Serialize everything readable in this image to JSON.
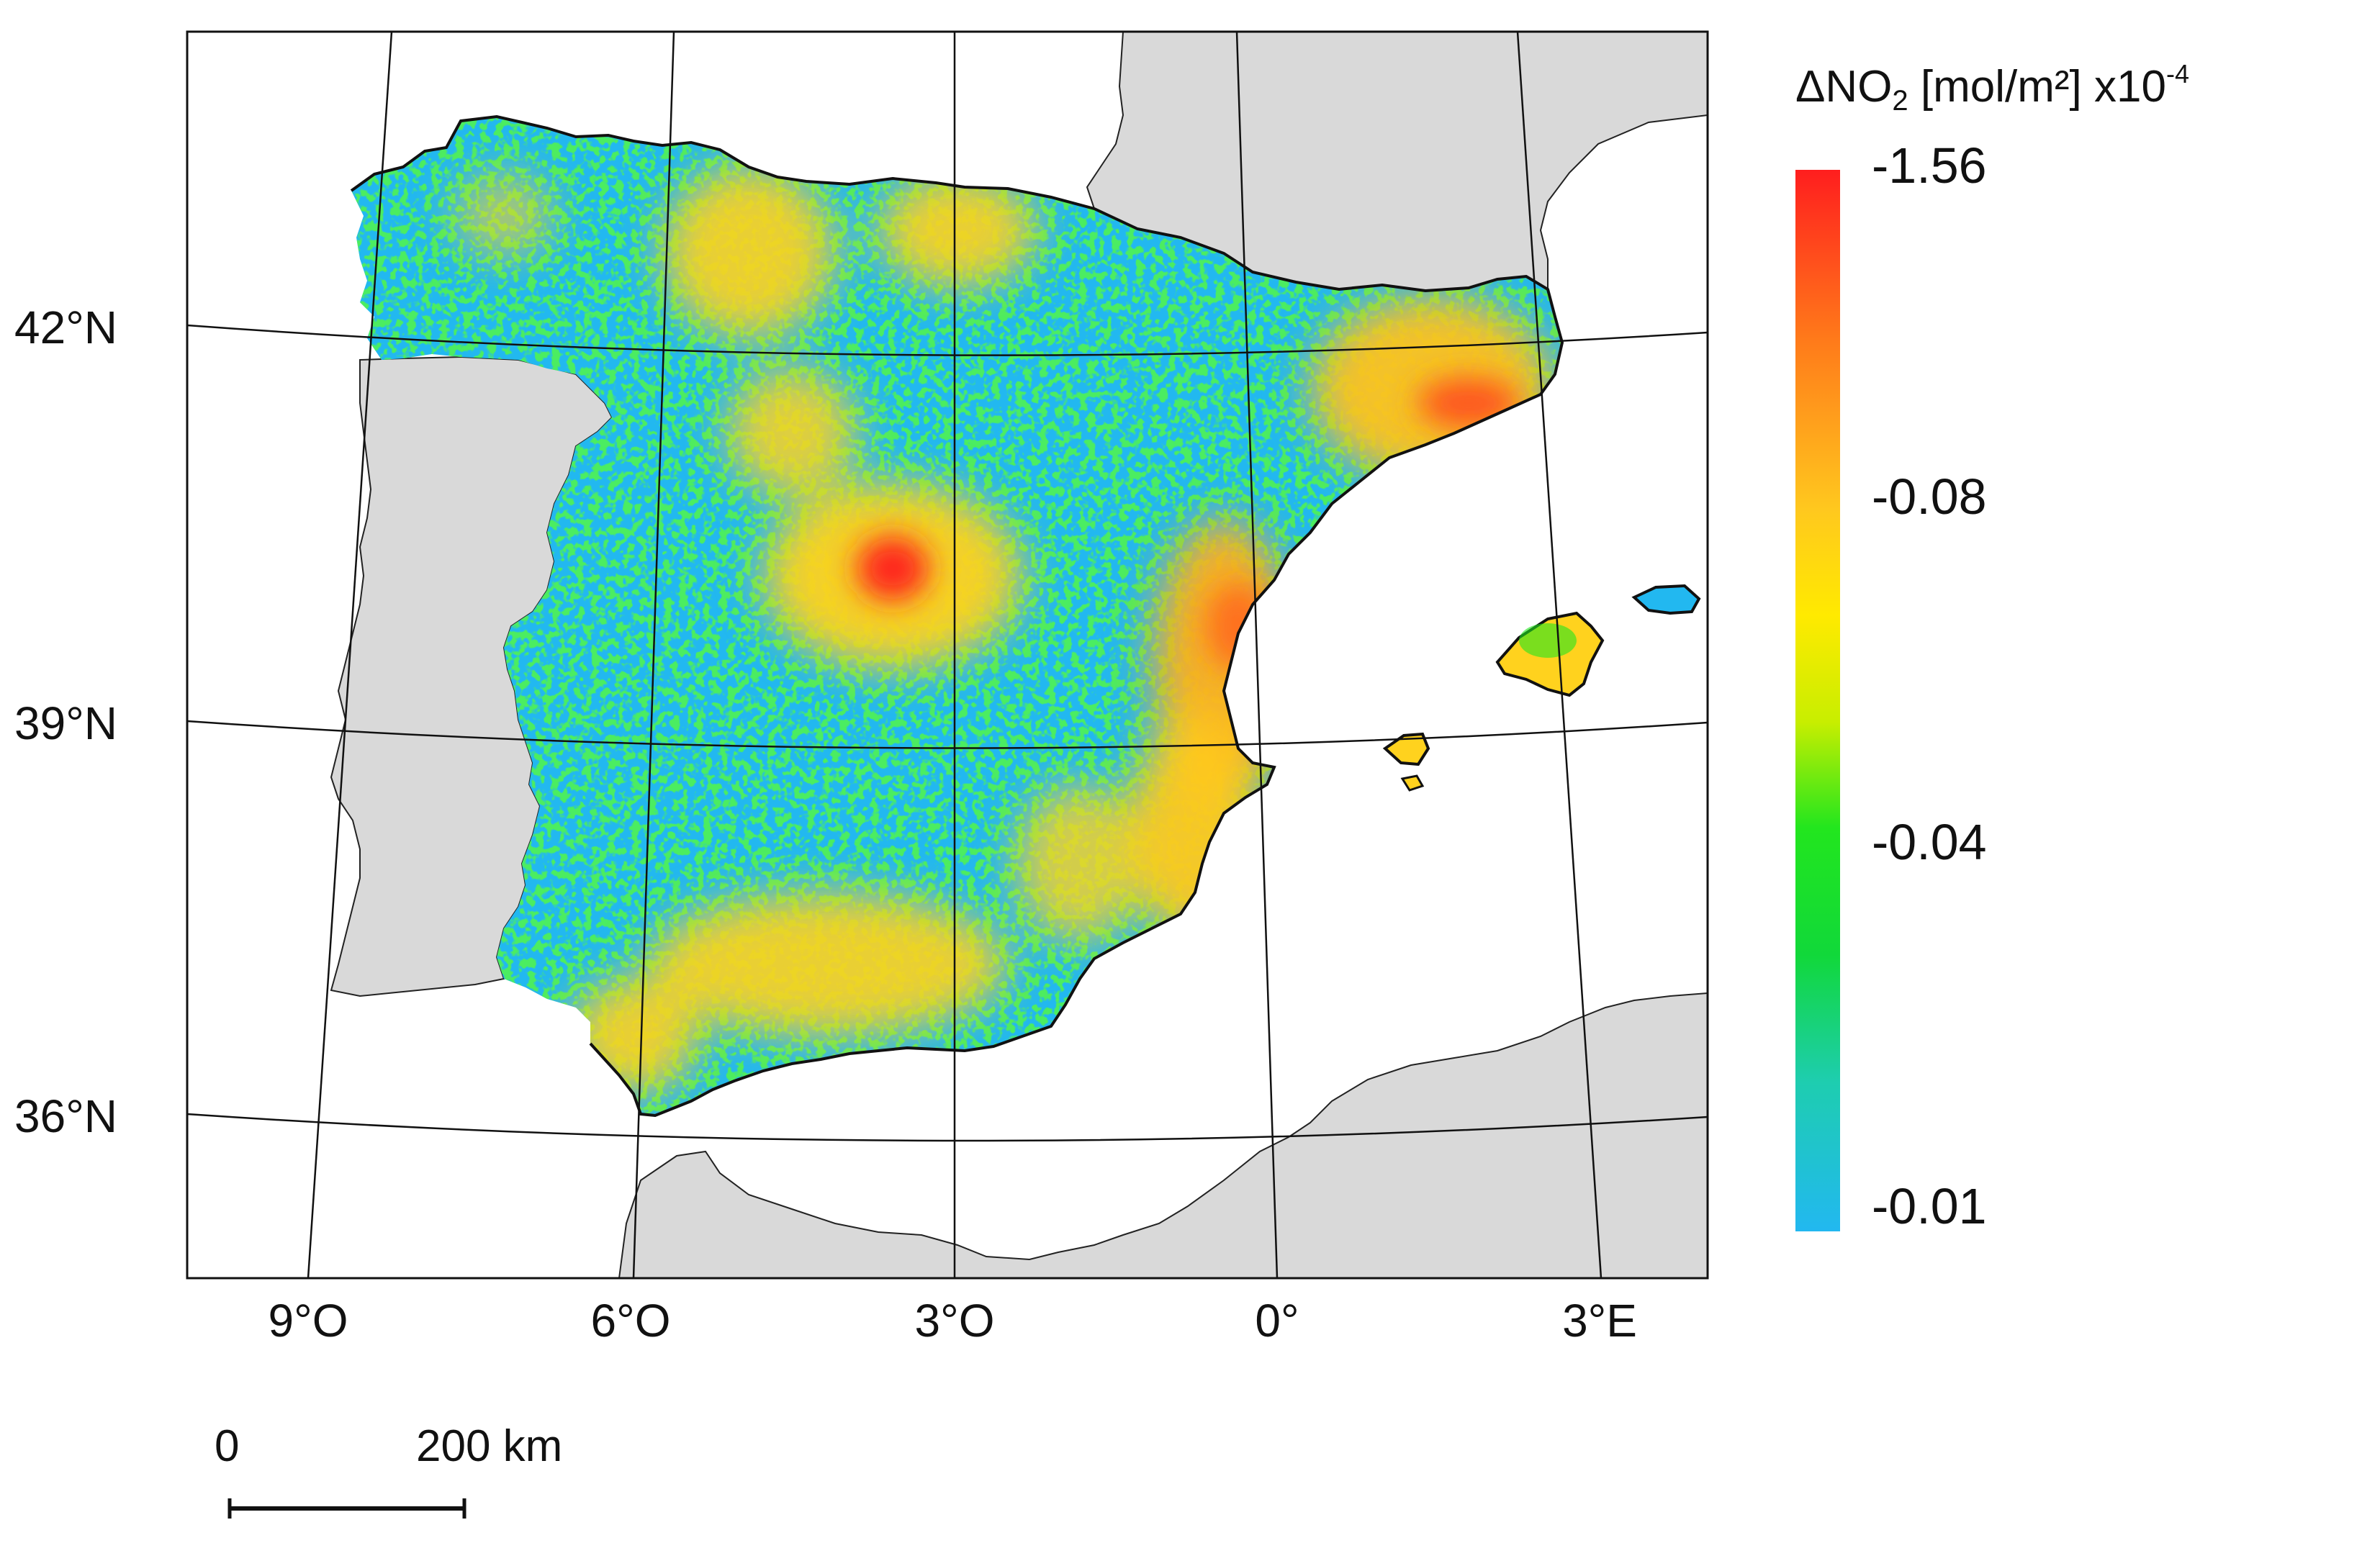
{
  "legend": {
    "title_delta": "ΔNO",
    "title_sub": "2",
    "title_unit": "[mol/m²] x10",
    "title_exp": "-4",
    "ticks": [
      "-1.56",
      "-0.08",
      "-0.04",
      "-0.01"
    ],
    "colors": [
      "#ff1e1e",
      "#ff9a1a",
      "#ffea00",
      "#22e61e",
      "#22b8f0"
    ]
  },
  "latitude_labels": [
    "42°N",
    "39°N",
    "36°N"
  ],
  "longitude_labels": [
    "9°O",
    "6°O",
    "3°O",
    "0°",
    "3°E"
  ],
  "scale_bar": {
    "start": "0",
    "end": "200 km"
  },
  "colors": {
    "land_gray": "#d9d9d9",
    "high_value": "#ff1e1e",
    "mid_value": "#ffd21e",
    "low_mid_value": "#22e61e",
    "low_value": "#22b8f0"
  }
}
